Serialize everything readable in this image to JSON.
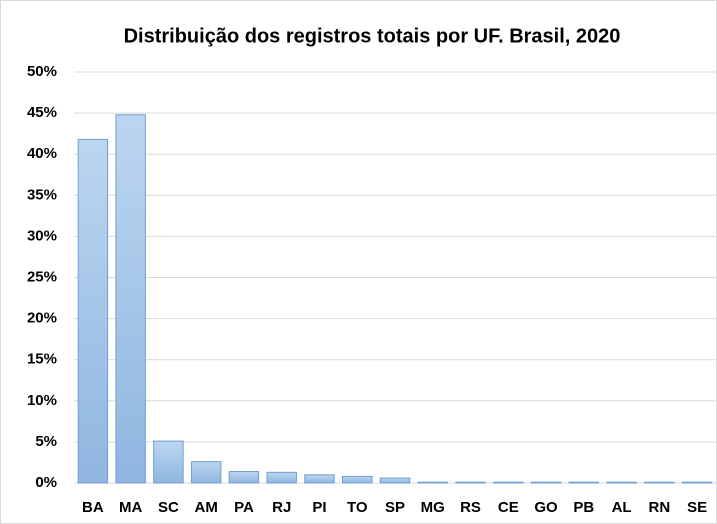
{
  "chart_data": {
    "type": "bar",
    "title": "Distribuição dos registros totais por UF. Brasil, 2020",
    "categories": [
      "BA",
      "MA",
      "SC",
      "AM",
      "PA",
      "RJ",
      "PI",
      "TO",
      "SP",
      "MG",
      "RS",
      "CE",
      "GO",
      "PB",
      "AL",
      "RN",
      "SE"
    ],
    "values": [
      41.8,
      44.8,
      5.1,
      2.6,
      1.4,
      1.3,
      1.0,
      0.8,
      0.6,
      0.1,
      0.1,
      0.1,
      0.1,
      0.1,
      0.1,
      0.1,
      0.1
    ],
    "color": "#9dc3e6",
    "ylim": [
      0,
      50
    ],
    "yticks": [
      {
        "value": 0,
        "label": "0%"
      },
      {
        "value": 5,
        "label": "5%"
      },
      {
        "value": 10,
        "label": "10%"
      },
      {
        "value": 15,
        "label": "15%"
      },
      {
        "value": 20,
        "label": "20%"
      },
      {
        "value": 25,
        "label": "25%"
      },
      {
        "value": 30,
        "label": "30%"
      },
      {
        "value": 35,
        "label": "35%"
      },
      {
        "value": 40,
        "label": "40%"
      },
      {
        "value": 45,
        "label": "45%"
      },
      {
        "value": 50,
        "label": "50%"
      }
    ],
    "grid": true
  }
}
